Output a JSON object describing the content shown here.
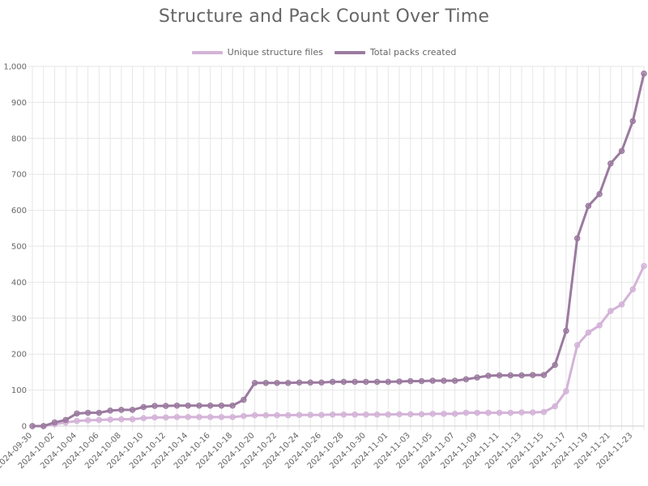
{
  "chart_data": {
    "type": "line",
    "title": "Structure and Pack Count Over Time",
    "xlabel": "",
    "ylabel": "",
    "ylim": [
      0,
      1000
    ],
    "y_ticks": [
      "0",
      "100",
      "200",
      "300",
      "400",
      "500",
      "600",
      "700",
      "800",
      "900",
      "1,000"
    ],
    "x_tick_labels": [
      "2024-09-30",
      "2024-10-02",
      "2024-10-04",
      "2024-10-06",
      "2024-10-08",
      "2024-10-10",
      "2024-10-12",
      "2024-10-14",
      "2024-10-16",
      "2024-10-18",
      "2024-10-20",
      "2024-10-22",
      "2024-10-24",
      "2024-10-26",
      "2024-10-28",
      "2024-10-30",
      "2024-11-01",
      "2024-11-03",
      "2024-11-05",
      "2024-11-07",
      "2024-11-09",
      "2024-11-11",
      "2024-11-13",
      "2024-11-15",
      "2024-11-17",
      "2024-11-19",
      "2024-11-21",
      "2024-11-23"
    ],
    "x": [
      "2024-09-30",
      "2024-10-01",
      "2024-10-02",
      "2024-10-03",
      "2024-10-04",
      "2024-10-05",
      "2024-10-06",
      "2024-10-07",
      "2024-10-08",
      "2024-10-09",
      "2024-10-10",
      "2024-10-11",
      "2024-10-12",
      "2024-10-13",
      "2024-10-14",
      "2024-10-15",
      "2024-10-16",
      "2024-10-17",
      "2024-10-18",
      "2024-10-19",
      "2024-10-20",
      "2024-10-21",
      "2024-10-22",
      "2024-10-23",
      "2024-10-24",
      "2024-10-25",
      "2024-10-26",
      "2024-10-27",
      "2024-10-28",
      "2024-10-29",
      "2024-10-30",
      "2024-10-31",
      "2024-11-01",
      "2024-11-02",
      "2024-11-03",
      "2024-11-04",
      "2024-11-05",
      "2024-11-06",
      "2024-11-07",
      "2024-11-08",
      "2024-11-09",
      "2024-11-10",
      "2024-11-11",
      "2024-11-12",
      "2024-11-13",
      "2024-11-14",
      "2024-11-15",
      "2024-11-16",
      "2024-11-17",
      "2024-11-18",
      "2024-11-19",
      "2024-11-20",
      "2024-11-21",
      "2024-11-22",
      "2024-11-23",
      "2024-11-24"
    ],
    "series": [
      {
        "name": "Unique structure files",
        "color": "#d4b3d8",
        "values": [
          0,
          0,
          5,
          10,
          14,
          16,
          17,
          18,
          19,
          19,
          22,
          24,
          24,
          25,
          25,
          25,
          25,
          25,
          25,
          28,
          30,
          30,
          30,
          30,
          31,
          31,
          31,
          32,
          32,
          32,
          32,
          32,
          32,
          33,
          33,
          33,
          34,
          34,
          34,
          37,
          37,
          37,
          37,
          37,
          38,
          38,
          39,
          55,
          97,
          225,
          260,
          280,
          320,
          338,
          380,
          445
        ]
      },
      {
        "name": "Total packs created",
        "color": "#9b7a9f",
        "values": [
          0,
          0,
          10,
          17,
          35,
          37,
          37,
          43,
          45,
          45,
          53,
          56,
          56,
          57,
          57,
          57,
          57,
          57,
          57,
          73,
          120,
          120,
          120,
          120,
          121,
          121,
          121,
          123,
          123,
          123,
          123,
          123,
          123,
          124,
          125,
          125,
          126,
          126,
          126,
          130,
          135,
          140,
          141,
          141,
          141,
          142,
          142,
          170,
          265,
          522,
          612,
          645,
          730,
          765,
          848,
          980
        ]
      }
    ],
    "grid": true,
    "legend_position": "top"
  }
}
